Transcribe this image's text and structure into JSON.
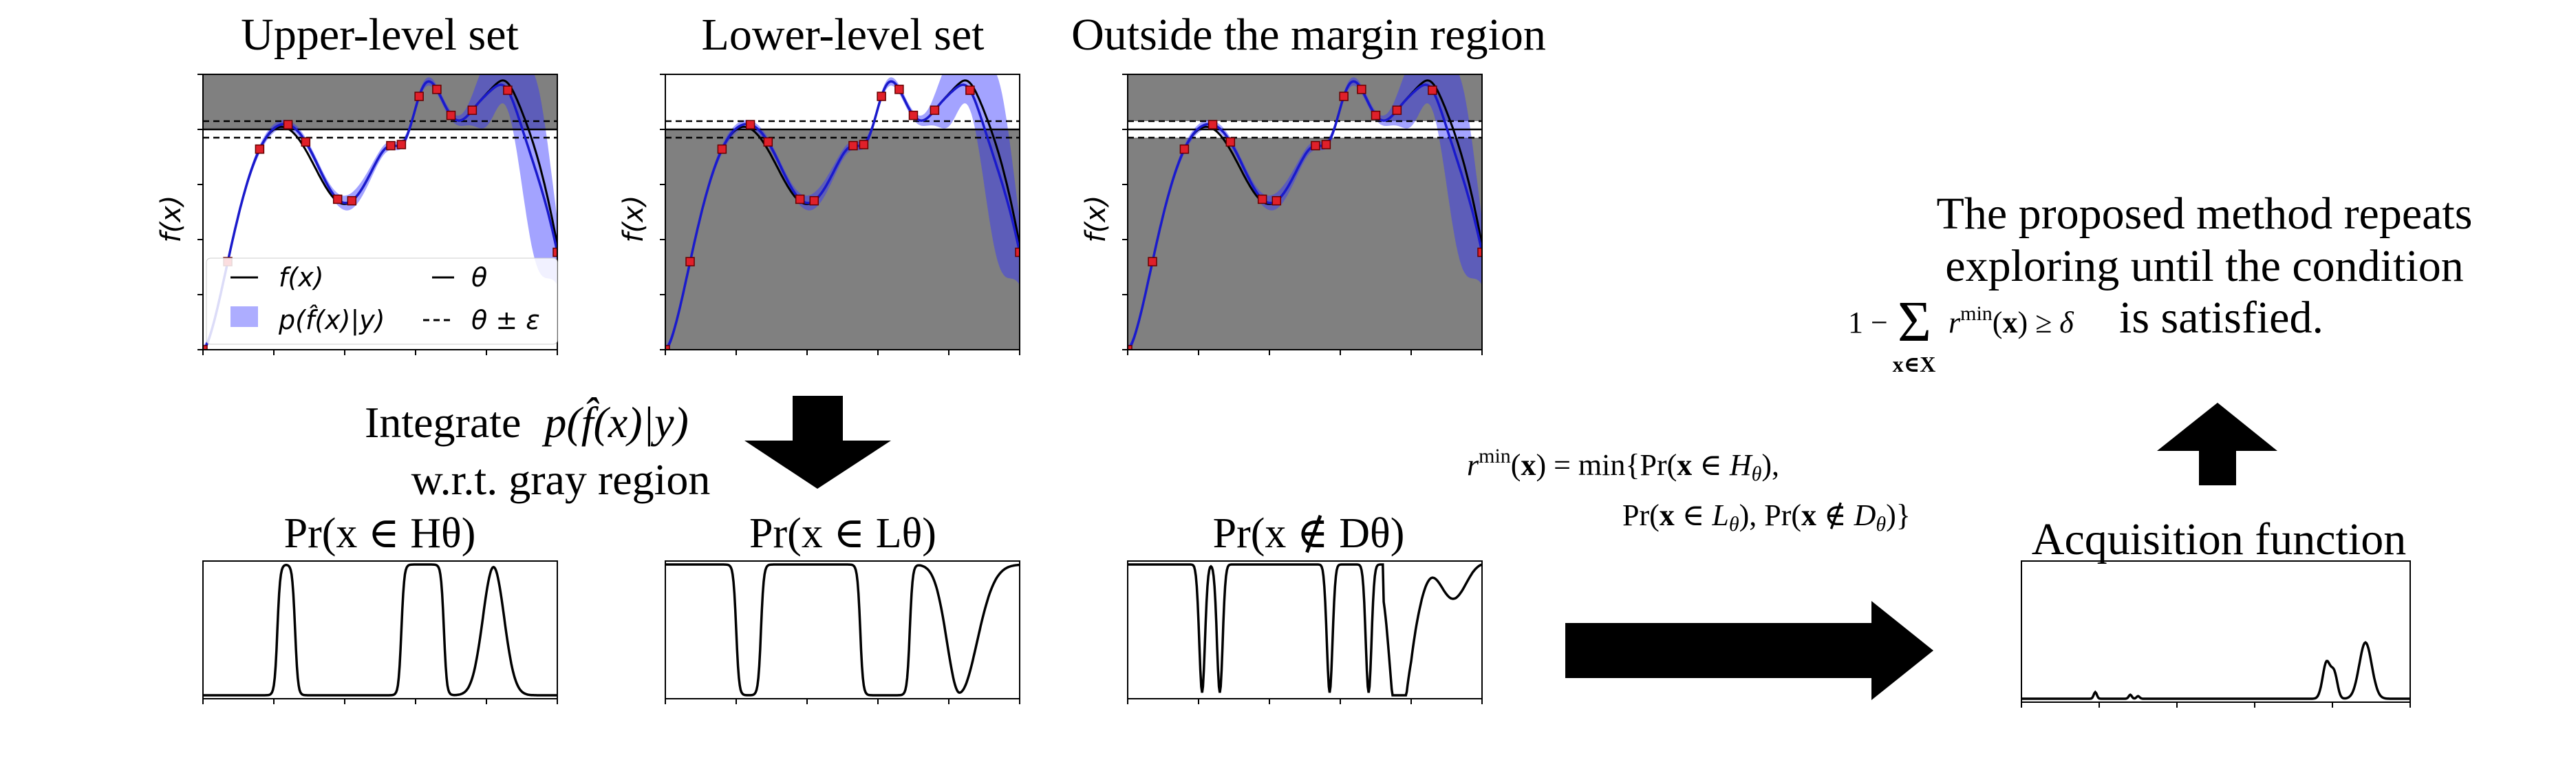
{
  "top_panels": [
    {
      "title": "Upper-level set",
      "ylabel": "f(x)",
      "gray": "upper"
    },
    {
      "title": "Lower-level set",
      "ylabel": "f(x)",
      "gray": "lower"
    },
    {
      "title": "Outside the margin region",
      "ylabel": "f(x)",
      "gray": "outside"
    }
  ],
  "legend": {
    "f": "f(x)",
    "theta": "θ",
    "p": "p(f̂(x)|y)",
    "theta_eps": "θ ± ε"
  },
  "integrate": {
    "line1_prefix": "Integrate",
    "line1_math": "p(f̂(x)|y)",
    "line2": "w.r.t. gray region"
  },
  "bottom_panels": [
    {
      "label": "Pr(x ∈ Hθ)"
    },
    {
      "label": "Pr(x ∈ Lθ)"
    },
    {
      "label": "Pr(x ∉ Dθ)"
    }
  ],
  "rmin_formula": {
    "line1": "r min(x) = min{Pr(x ∈ Hθ),",
    "line2": "Pr(x ∈ Lθ), Pr(x ∉ Dθ)}"
  },
  "acquisition": {
    "title": "Acquisition function"
  },
  "proposed": {
    "line1": "The proposed method repeats",
    "line2": "exploring until the condition",
    "line3_math": "1 − Σ r min(x) ≥ δ",
    "line3_sub": "x∈X",
    "line3_text": "is satisfied."
  },
  "colors": {
    "gray_region": "#808080",
    "posterior_band": "#3333ff",
    "posterior_mean": "#1a1acc",
    "true_function": "#000000",
    "sample_point": "#e0202a",
    "arrow": "#000000"
  }
}
